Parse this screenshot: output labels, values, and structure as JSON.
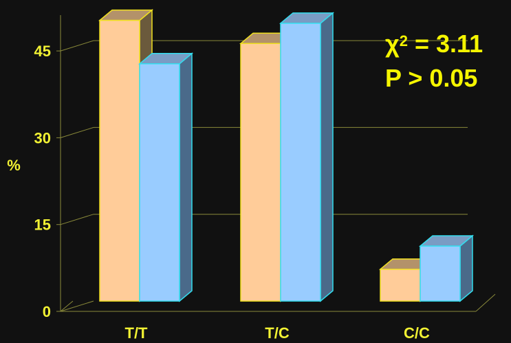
{
  "chart_data": {
    "type": "bar",
    "categories": [
      "T/T",
      "T/C",
      "C/C"
    ],
    "series": [
      {
        "values": [
          48.5,
          44.5,
          5.5
        ]
      },
      {
        "values": [
          41.0,
          48.0,
          9.5
        ]
      }
    ],
    "ylabel": "%",
    "xlabel": "",
    "ylim": [
      0,
      45
    ],
    "yticks": [
      "0",
      "15",
      "30",
      "45"
    ],
    "grid": true,
    "projection": "3d"
  },
  "annotation": {
    "chi_symbol": "χ",
    "chi_exponent": "2",
    "chi_text": " = 3.11",
    "p_text": "P > 0.05"
  },
  "colors": {
    "background": "#111111",
    "axis_text": "#f2f233",
    "grid": "#8a8a3a",
    "series_1_face": "#ffcc99",
    "series_1_edge": "#f0e020",
    "series_2_face": "#99ccff",
    "series_2_edge": "#33ddee"
  }
}
